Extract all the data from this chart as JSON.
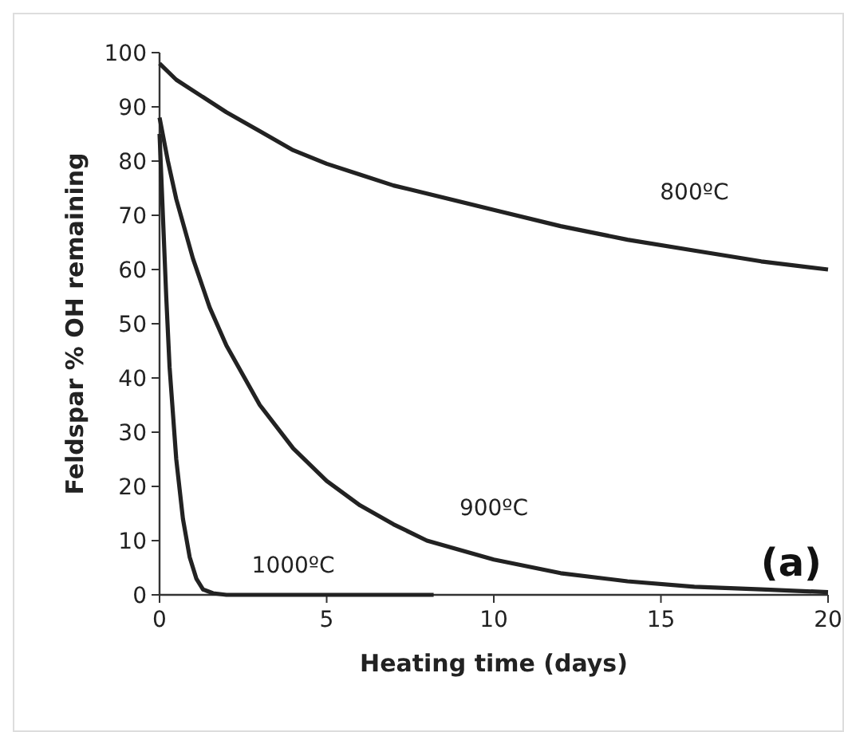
{
  "chart_data": {
    "type": "line",
    "xlabel": "Heating time (days)",
    "ylabel": "Feldspar % OH remaining",
    "xlim": [
      0,
      20
    ],
    "xticks": [
      0,
      5,
      10,
      15,
      20
    ],
    "ylim": [
      0,
      100
    ],
    "yticks": [
      0,
      10,
      20,
      30,
      40,
      50,
      60,
      70,
      80,
      90,
      100
    ],
    "grid": false,
    "marker": "none",
    "line_style": "solid",
    "series": [
      {
        "name": "800ºC",
        "color": "#222222",
        "x": [
          0,
          0.5,
          1,
          2,
          3,
          4,
          5,
          6,
          7,
          8,
          10,
          12,
          14,
          16,
          18,
          20
        ],
        "values": [
          98,
          95,
          93,
          89,
          85.5,
          82,
          79.5,
          77.5,
          75.5,
          74,
          71,
          68,
          65.5,
          63.5,
          61.5,
          60
        ]
      },
      {
        "name": "900ºC",
        "color": "#222222",
        "x": [
          0,
          0.25,
          0.5,
          1,
          1.5,
          2,
          3,
          4,
          5,
          6,
          7,
          8,
          10,
          12,
          14,
          16,
          18,
          20
        ],
        "values": [
          88,
          80,
          73,
          62,
          53,
          46,
          35,
          27,
          21,
          16.5,
          13,
          10,
          6.5,
          4,
          2.5,
          1.5,
          1,
          0.5
        ]
      },
      {
        "name": "1000ºC",
        "color": "#222222",
        "x": [
          0,
          0.1,
          0.2,
          0.3,
          0.5,
          0.7,
          0.9,
          1.1,
          1.3,
          1.6,
          2,
          4,
          6,
          8.2
        ],
        "values": [
          85,
          70,
          55,
          42,
          25,
          14,
          7,
          3,
          1,
          0.3,
          0,
          0,
          0,
          0
        ]
      }
    ],
    "annotations": [
      "(a)"
    ]
  }
}
